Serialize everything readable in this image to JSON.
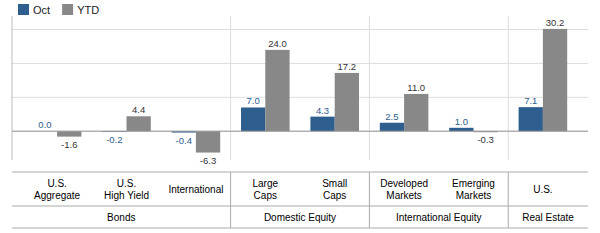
{
  "chart_data": {
    "type": "bar",
    "categories": [
      "U.S.\nAggregate",
      "U.S.\nHigh Yield",
      "International",
      "Large\nCaps",
      "Small\nCaps",
      "Developed\nMarkets",
      "Emerging\nMarkets",
      "U.S."
    ],
    "category_groups": [
      "Bonds",
      "Bonds",
      "Bonds",
      "Domestic Equity",
      "Domestic Equity",
      "International Equity",
      "International Equity",
      "Real Estate"
    ],
    "series": [
      {
        "name": "Oct",
        "color": "#2E5E8E",
        "values": [
          0.0,
          -0.2,
          -0.4,
          7.0,
          4.3,
          2.5,
          1.0,
          7.1
        ],
        "value_labels": [
          "0.0",
          "-0.2",
          "-0.4",
          "7.0",
          "4.3",
          "2.5",
          "1.0",
          "7.1"
        ]
      },
      {
        "name": "YTD",
        "color": "#888888",
        "values": [
          -1.6,
          4.4,
          -6.3,
          24.0,
          17.2,
          11.0,
          -0.3,
          30.2
        ],
        "value_labels": [
          "-1.6",
          "4.4",
          "-6.3",
          "24.0",
          "17.2",
          "11.0",
          "-0.3",
          "30.2"
        ]
      }
    ],
    "ylim": [
      -8.5,
      34
    ],
    "yticks": [
      0,
      10,
      20,
      30
    ],
    "grid": true,
    "legend": "upper left",
    "data_labels": true,
    "tick_labels": "x"
  }
}
